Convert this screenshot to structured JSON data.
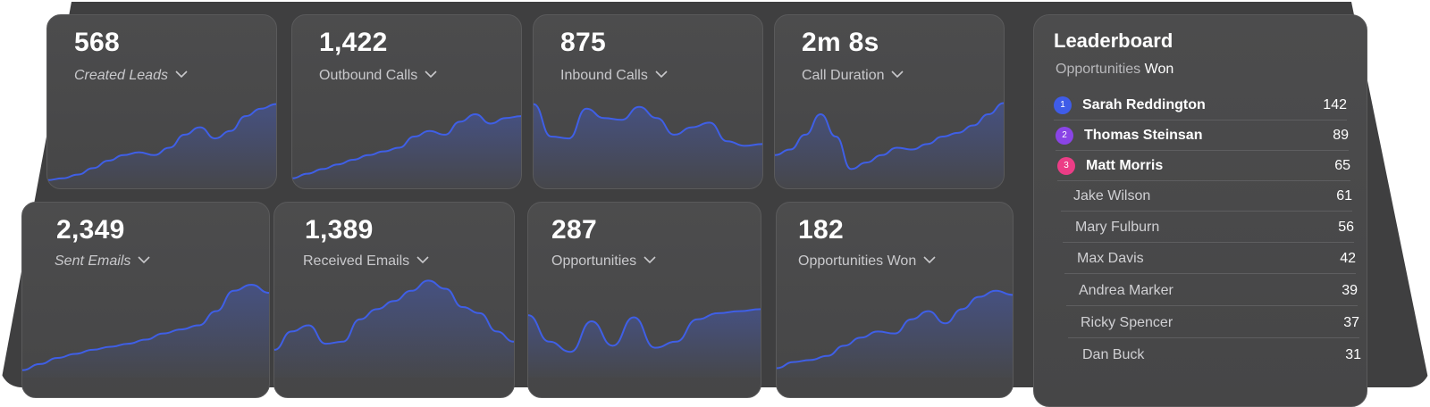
{
  "metrics": [
    {
      "value": "568",
      "label": "Created Leads",
      "italic": true,
      "series": [
        3,
        5,
        9,
        16,
        24,
        30,
        33,
        30,
        38,
        52,
        60,
        48,
        56,
        72,
        80,
        85
      ]
    },
    {
      "value": "1,422",
      "label": "Outbound Calls",
      "italic": false,
      "series": [
        5,
        10,
        15,
        20,
        25,
        30,
        34,
        38,
        50,
        56,
        52,
        66,
        74,
        64,
        70,
        72
      ]
    },
    {
      "value": "875",
      "label": "Inbound Calls",
      "italic": false,
      "series": [
        85,
        50,
        48,
        80,
        70,
        68,
        82,
        70,
        52,
        60,
        65,
        45,
        40,
        42
      ]
    },
    {
      "value": "2m 8s",
      "label": "Call Duration",
      "italic": false,
      "series": [
        30,
        36,
        52,
        74,
        50,
        15,
        22,
        30,
        38,
        36,
        42,
        50,
        54,
        62,
        74,
        86
      ]
    },
    {
      "value": "2,349",
      "label": "Sent Emails",
      "italic": true,
      "series": [
        2,
        8,
        14,
        18,
        22,
        25,
        28,
        32,
        38,
        42,
        46,
        60,
        80,
        86,
        78
      ]
    },
    {
      "value": "1,389",
      "label": "Received Emails",
      "italic": false,
      "series": [
        22,
        40,
        46,
        28,
        30,
        52,
        62,
        70,
        80,
        90,
        82,
        64,
        58,
        40,
        30
      ]
    },
    {
      "value": "287",
      "label": "Opportunities",
      "italic": false,
      "series": [
        56,
        30,
        20,
        50,
        26,
        54,
        24,
        30,
        52,
        58,
        60,
        62
      ]
    },
    {
      "value": "182",
      "label": "Opportunities Won",
      "italic": false,
      "series": [
        4,
        10,
        12,
        16,
        26,
        34,
        40,
        38,
        52,
        60,
        48,
        62,
        74,
        80,
        76
      ]
    }
  ],
  "leaderboard": {
    "title": "Leaderboard",
    "subtitle_prefix": "Opportunities",
    "subtitle_value": "Won",
    "rows": [
      {
        "rank": "1",
        "name": "Sarah Reddington",
        "score": "142",
        "color": "#3f5ce8"
      },
      {
        "rank": "2",
        "name": "Thomas Steinsan",
        "score": "89",
        "color": "#8a44e6"
      },
      {
        "rank": "3",
        "name": "Matt Morris",
        "score": "65",
        "color": "#ec3d86"
      },
      {
        "name": "Jake Wilson",
        "score": "61"
      },
      {
        "name": "Mary Fulburn",
        "score": "56"
      },
      {
        "name": "Max Davis",
        "score": "42"
      },
      {
        "name": "Andrea Marker",
        "score": "39"
      },
      {
        "name": "Ricky Spencer",
        "score": "37"
      },
      {
        "name": "Dan Buck",
        "score": "31"
      }
    ]
  },
  "colors": {
    "accent": "#3f5fe6"
  }
}
